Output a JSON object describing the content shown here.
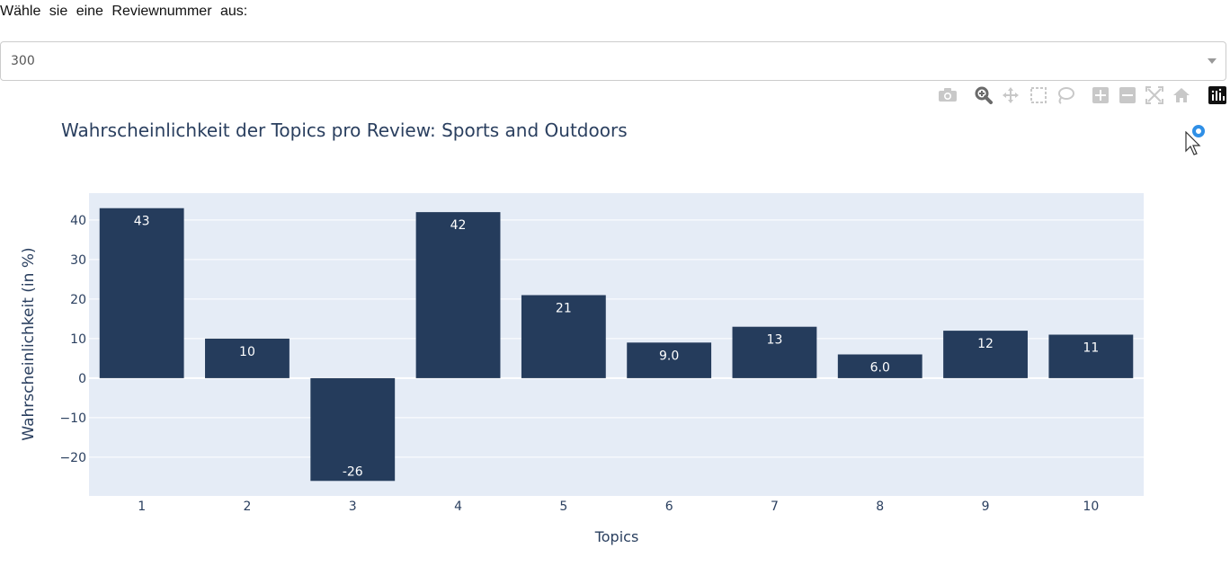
{
  "prompt": {
    "label": "Wähle sie eine Reviewnummer aus:"
  },
  "dropdown": {
    "selected": "300"
  },
  "modebar": {
    "icons": [
      "camera-icon",
      "zoom-icon",
      "pan-icon",
      "box-select-icon",
      "lasso-icon",
      "zoom-in-icon",
      "zoom-out-icon",
      "autoscale-icon",
      "reset-axes-icon",
      "plotly-logo-icon"
    ]
  },
  "colors": {
    "bar": "#253c5c",
    "plot_bg": "#e5ecf6",
    "text": "#2a3f5f",
    "spinner": "#2f8fe6"
  },
  "chart_data": {
    "type": "bar",
    "title": "Wahrscheinlichkeit der Topics pro Review: Sports and Outdoors",
    "xlabel": "Topics",
    "ylabel": "Wahrscheinlichkeit (in %)",
    "categories": [
      "1",
      "2",
      "3",
      "4",
      "5",
      "6",
      "7",
      "8",
      "9",
      "10"
    ],
    "values": [
      43,
      10,
      -26,
      42,
      21,
      9.0,
      13,
      6.0,
      12,
      11
    ],
    "labels": [
      "43",
      "10",
      "-26",
      "42",
      "21",
      "9.0",
      "13",
      "6.0",
      "12",
      "11"
    ],
    "yticks": [
      -20,
      -10,
      0,
      10,
      20,
      30,
      40
    ],
    "ytick_labels": [
      "−20",
      "−10",
      "0",
      "10",
      "20",
      "30",
      "40"
    ],
    "ylim": [
      -29.8,
      46.8
    ],
    "grid": true
  }
}
